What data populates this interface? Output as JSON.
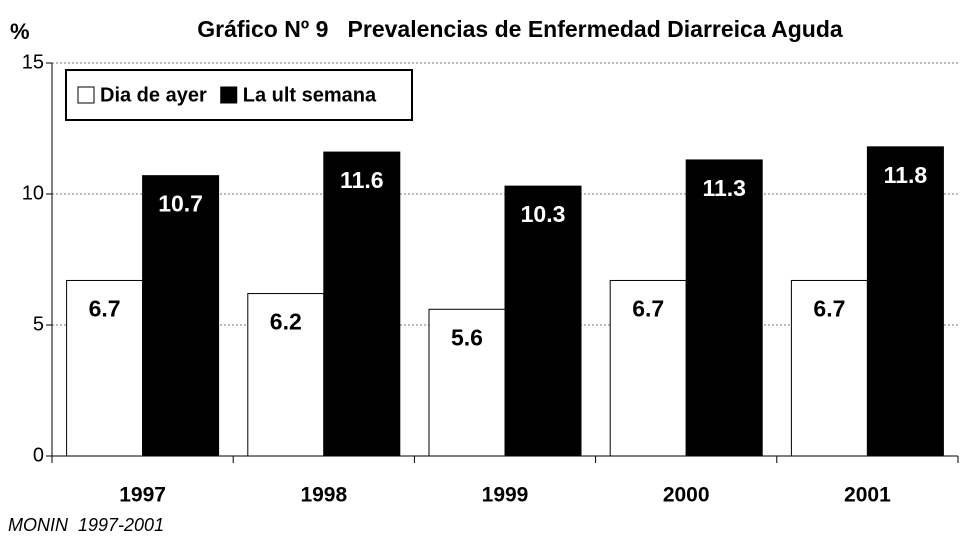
{
  "chart_data": {
    "type": "bar",
    "title": "Gráfico Nº 9   Prevalencias de Enfermedad Diarreica Aguda",
    "y_label": "%",
    "source": "MONIN  1997-2001",
    "categories": [
      "1997",
      "1998",
      "1999",
      "2000",
      "2001"
    ],
    "series": [
      {
        "name": "Dia de ayer",
        "color": "#ffffff",
        "values": [
          6.7,
          6.2,
          5.6,
          6.7,
          6.7
        ]
      },
      {
        "name": "La ult semana",
        "color": "#000000",
        "values": [
          10.7,
          11.6,
          10.3,
          11.3,
          11.8
        ]
      }
    ],
    "ylim": [
      0,
      15
    ],
    "yticks": [
      0,
      5,
      10,
      15
    ],
    "grid": true,
    "legend": "top-left"
  }
}
